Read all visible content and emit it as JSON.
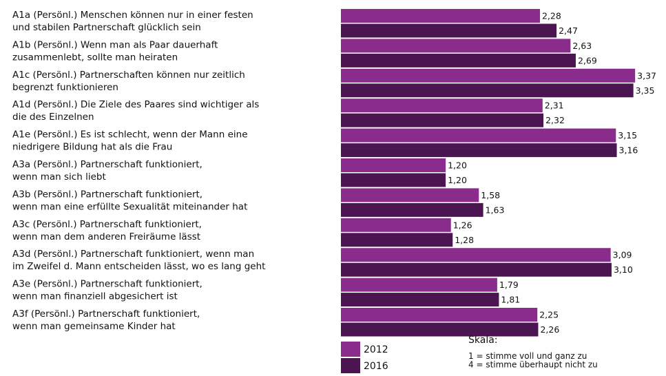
{
  "chart_data": {
    "type": "hbar",
    "categories": [
      [
        "A1a (Persönl.) Menschen können nur in einer festen",
        "und stabilen Partnerschaft glücklich sein"
      ],
      [
        "A1b (Persönl.) Wenn man als Paar dauerhaft",
        "zusammenlebt, sollte man heiraten"
      ],
      [
        "A1c (Persönl.) Partnerschaften können nur zeitlich",
        "begrenzt funktionieren"
      ],
      [
        "A1d (Persönl.) Die Ziele des Paares sind wichtiger als",
        "die des Einzelnen"
      ],
      [
        "A1e (Persönl.) Es ist schlecht, wenn der Mann eine",
        "niedrigere Bildung hat als die Frau"
      ],
      [
        "A3a (Persönl.) Partnerschaft funktioniert,",
        "wenn man sich liebt"
      ],
      [
        "A3b (Persönl.) Partnerschaft funktioniert,",
        "wenn man eine erfüllte Sexualität miteinander hat"
      ],
      [
        "A3c (Persönl.) Partnerschaft funktioniert,",
        "wenn man dem anderen Freiräume lässt"
      ],
      [
        "A3d (Persönl.) Partnerschaft funktioniert, wenn man",
        "im Zweifel d. Mann entscheiden lässt, wo es lang geht"
      ],
      [
        "A3e (Persönl.) Partnerschaft funktioniert,",
        "wenn man finanziell abgesichert ist"
      ],
      [
        "A3f (Persönl.) Partnerschaft funktioniert,",
        "wenn man gemeinsame Kinder hat"
      ]
    ],
    "series": [
      {
        "name": "2012",
        "color": "#8a2c8c",
        "values": [
          2.28,
          2.63,
          3.37,
          2.31,
          3.15,
          1.2,
          1.58,
          1.26,
          3.09,
          1.79,
          2.25
        ],
        "value_labels": [
          "2,28",
          "2,63",
          "3,37",
          "2,31",
          "3,15",
          "1,20",
          "1,58",
          "1,26",
          "3,09",
          "1,79",
          "2,25"
        ]
      },
      {
        "name": "2016",
        "color": "#4b1551",
        "values": [
          2.47,
          2.69,
          3.35,
          2.32,
          3.16,
          1.2,
          1.63,
          1.28,
          3.1,
          1.81,
          2.26
        ],
        "value_labels": [
          "2,47",
          "2,69",
          "3,35",
          "2,32",
          "3,16",
          "1,20",
          "1,63",
          "1,28",
          "3,10",
          "1,81",
          "2,26"
        ]
      }
    ],
    "xlim": [
      0,
      3.7
    ],
    "annotations": [
      "Skala:",
      "1 = stimme voll und ganz zu",
      "4 = stimme überhaupt nicht zu"
    ]
  }
}
